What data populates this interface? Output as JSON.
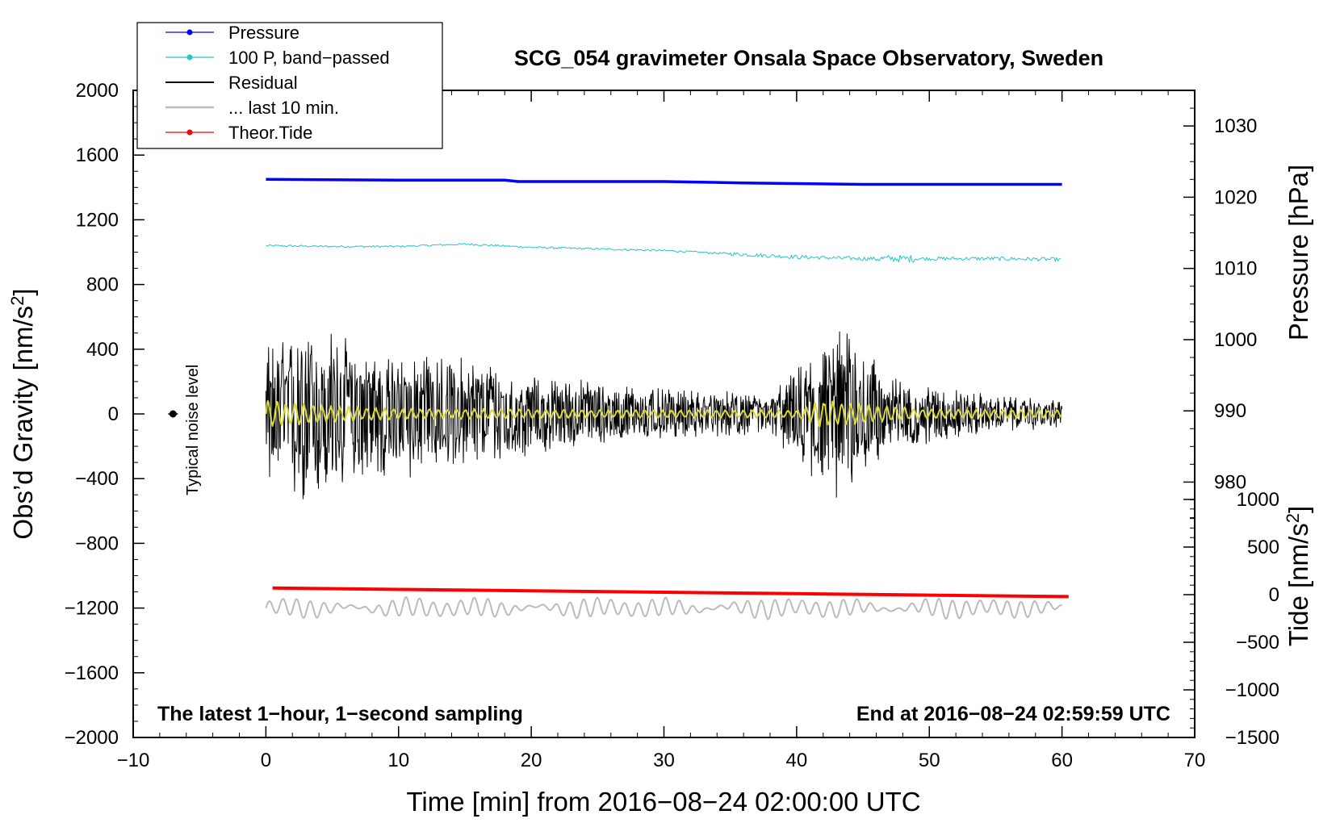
{
  "chart_data": {
    "type": "line",
    "title": "SCG_054 gravimeter Onsala Space Observatory, Sweden",
    "xlabel": "Time [min] from 2016−08−24 02:00:00 UTC",
    "ylabel": "Obs’d Gravity [nm/s²]",
    "ylabel_main": "Obs’d Gravity [nm/s",
    "ylabel_sup": "2",
    "ylabel_end": "]",
    "xlim": [
      -10,
      70
    ],
    "ylim": [
      -2000,
      2000
    ],
    "xticks": [
      -10,
      0,
      10,
      20,
      30,
      40,
      50,
      60,
      70
    ],
    "xtick_labels": [
      "−10",
      "0",
      "10",
      "20",
      "30",
      "40",
      "50",
      "60",
      "70"
    ],
    "yticks": [
      -2000,
      -1600,
      -1200,
      -800,
      -400,
      0,
      400,
      800,
      1200,
      1600,
      2000
    ],
    "ytick_labels": [
      "−2000",
      "−1600",
      "−1200",
      "−800",
      "−400",
      "0",
      "400",
      "800",
      "1200",
      "1600",
      "2000"
    ],
    "right_axes": [
      {
        "label": "Pressure [hPa]",
        "ylim": [
          960,
          1035
        ],
        "ticks": [
          980,
          990,
          1000,
          1010,
          1020,
          1030
        ],
        "tick_labels": [
          "980",
          "990",
          "1000",
          "1010",
          "1020",
          "1030"
        ]
      },
      {
        "label": "Tide [nm/s²]",
        "label_main": "Tide [nm/s",
        "label_sup": "2",
        "label_end": "]",
        "ylim": [
          -1500,
          1500
        ],
        "ticks": [
          -1500,
          -1000,
          -500,
          0,
          500,
          1000
        ],
        "tick_labels": [
          "−1500",
          "−1000",
          "−500",
          "0",
          "500",
          "1000"
        ]
      }
    ],
    "legend": {
      "position": "top-left",
      "entries": [
        {
          "label": "Pressure",
          "color": "#0000ff",
          "marker": true
        },
        {
          "label": "100 P, band−passed",
          "color": "#20c8c8",
          "marker": true
        },
        {
          "label": "Residual",
          "color": "#000000",
          "marker": false
        },
        {
          "label": "... last 10 min.",
          "color": "#bbbbbb",
          "marker": false
        },
        {
          "label": "Theor.Tide",
          "color": "#ff0000",
          "marker": true
        }
      ]
    },
    "series": [
      {
        "name": "Pressure",
        "axis": "pressure_hPa",
        "color": "#0000ff",
        "x": [
          0,
          10,
          18,
          19,
          30,
          36,
          45,
          60
        ],
        "y": [
          1022.5,
          1022.4,
          1022.4,
          1022.2,
          1022.2,
          1022.0,
          1021.8,
          1021.8
        ]
      },
      {
        "name": "100 P, band−passed",
        "axis": "gravity",
        "color": "#20c8c8",
        "x": [
          0,
          5,
          10,
          15,
          20,
          25,
          30,
          35,
          40,
          45,
          50,
          55,
          60
        ],
        "y": [
          1040,
          1035,
          1035,
          1050,
          1030,
          1020,
          1010,
          990,
          970,
          960,
          960,
          960,
          955
        ]
      },
      {
        "name": "Residual",
        "axis": "gravity",
        "color": "#000000",
        "x": [
          0,
          3,
          8,
          13,
          20,
          30,
          38,
          42,
          44,
          47,
          55,
          60
        ],
        "env": [
          420,
          620,
          420,
          400,
          260,
          160,
          130,
          480,
          560,
          230,
          110,
          90
        ]
      },
      {
        "name": "Residual (smoothed)",
        "axis": "gravity",
        "color": "#d8d838",
        "x": [
          0,
          5,
          10,
          20,
          30,
          40,
          42,
          44,
          50,
          60
        ],
        "env": [
          90,
          50,
          35,
          30,
          25,
          25,
          90,
          70,
          30,
          25
        ]
      },
      {
        "name": "... last 10 min.",
        "axis": "gravity",
        "color": "#bbbbbb",
        "x": [
          0,
          60
        ],
        "center": -1200,
        "amplitude": 70
      },
      {
        "name": "Theor.Tide",
        "axis": "tide_nms2",
        "color": "#ff0000",
        "x": [
          0.5,
          10,
          20,
          30,
          40,
          50,
          60.5
        ],
        "y": [
          70,
          55,
          40,
          25,
          10,
          -5,
          -20
        ]
      }
    ],
    "annotations": {
      "noise_label": "Typical noise level",
      "noise_point": {
        "x": -7,
        "y": 0
      },
      "footer_left": "The latest 1−hour, 1−second sampling",
      "footer_right": "End at 2016−08−24 02:59:59 UTC"
    }
  }
}
